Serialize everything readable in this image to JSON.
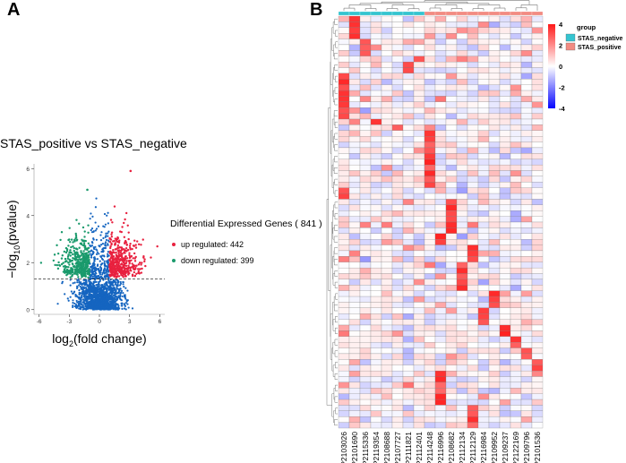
{
  "panels": {
    "a_label": "A",
    "b_label": "B"
  },
  "chart_data": [
    {
      "type": "scatter",
      "title": "STAS_positive vs STAS_negative",
      "xlabel": "log2(fold change)",
      "ylabel": "-log10(pvalue)",
      "xlim": [
        -6.5,
        6.5
      ],
      "ylim": [
        -0.2,
        6.2
      ],
      "x_ticks": [
        -6,
        -3,
        0,
        3,
        6
      ],
      "y_ticks": [
        0,
        2,
        4,
        6
      ],
      "threshold_pvalue_line": 1.3,
      "legend": {
        "title": "Differential Expressed Genes ( 841 )",
        "items": [
          {
            "label": "up regulated: 442",
            "color": "#e8213f"
          },
          {
            "label": "down regulated: 399",
            "color": "#1a9a6c"
          }
        ]
      },
      "series": [
        {
          "name": "up regulated",
          "count": 442,
          "color": "#e8213f"
        },
        {
          "name": "down regulated",
          "count": 399,
          "color": "#1a9a6c"
        },
        {
          "name": "not significant",
          "color": "#1565c0"
        }
      ]
    },
    {
      "type": "heatmap",
      "columns": [
        "P2103026",
        "P2101690",
        "P2115336",
        "P2119354",
        "P2108688",
        "P2107727",
        "P2111821",
        "P2112401",
        "P2114248",
        "P2116996",
        "P2108682",
        "P2112134",
        "P2112129",
        "P2116984",
        "P2109952",
        "P2109237",
        "P2122169",
        "P2109796",
        "P2101536"
      ],
      "groups": [
        "STAS_negative",
        "STAS_negative",
        "STAS_negative",
        "STAS_negative",
        "STAS_negative",
        "STAS_negative",
        "STAS_negative",
        "STAS_negative",
        "STAS_positive",
        "STAS_positive",
        "STAS_positive",
        "STAS_positive",
        "STAS_positive",
        "STAS_positive",
        "STAS_positive",
        "STAS_positive",
        "STAS_positive",
        "STAS_positive",
        "STAS_positive"
      ],
      "n_rows": 72,
      "color_range": [
        -4,
        4
      ],
      "colorbar_ticks": [
        "4",
        "2",
        "0",
        "-2",
        "-4"
      ],
      "group_legend": {
        "title": "group",
        "items": [
          {
            "label": "STAS_negative",
            "color": "#35c4d0"
          },
          {
            "label": "STAS_positive",
            "color": "#f28b82"
          }
        ]
      }
    }
  ]
}
